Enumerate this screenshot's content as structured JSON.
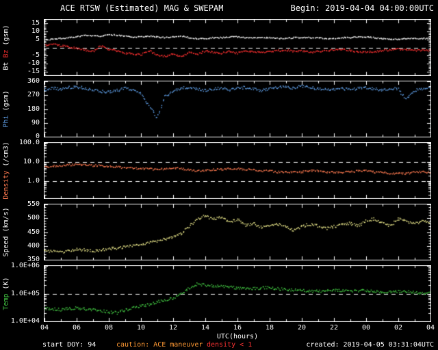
{
  "header": {
    "begin": "Begin: 2019-04-04 04:00:00UTC"
  },
  "footer": {
    "start_doy": "start DOY: 94",
    "caution": "caution: ACE maneuver",
    "density_warning": "density < 1",
    "created": "created: 2019-04-05 03:31:04UTC"
  },
  "colors": {
    "background": "#000000",
    "frame": "#ffffff",
    "bt": "#ffffff",
    "bz": "#ff3030",
    "phi": "#5f9ee6",
    "density": "#ff7a50",
    "speed": "#eeeb8d",
    "temp": "#44cc44",
    "caution_text": "#ff9933",
    "warning_text": "#ff3333"
  },
  "chart_data": {
    "type": "scatter",
    "title": "ACE RTSW (Estimated) MAG & SWEPAM",
    "x": {
      "label": "UTC(hours)",
      "range": [
        4,
        28
      ],
      "tick_hours": [
        4,
        6,
        8,
        10,
        12,
        14,
        16,
        18,
        20,
        22,
        24,
        26,
        28
      ],
      "tick_labels": [
        "04",
        "06",
        "08",
        "10",
        "12",
        "14",
        "16",
        "18",
        "20",
        "22",
        "00",
        "02",
        "04"
      ]
    },
    "x_hours": [
      4,
      4.5,
      5,
      5.5,
      6,
      6.5,
      7,
      7.5,
      8,
      8.5,
      9,
      9.5,
      10,
      10.5,
      11,
      11.5,
      12,
      12.5,
      13,
      13.5,
      14,
      14.5,
      15,
      15.5,
      16,
      16.5,
      17,
      17.5,
      18,
      18.5,
      19,
      19.5,
      20,
      20.5,
      21,
      21.5,
      22,
      22.5,
      23,
      23.5,
      24,
      24.5,
      25,
      25.5,
      26,
      26.5,
      27,
      27.5,
      28
    ],
    "panels": [
      {
        "id": "mag",
        "ylabel_parts": [
          {
            "text": "Bt",
            "color": "#ffffff"
          },
          {
            "text": " ",
            "color": "#ffffff"
          },
          {
            "text": "Bz",
            "color": "#ff3030"
          },
          {
            "text": " (gsm)",
            "color": "#ffffff"
          }
        ],
        "scale": "linear",
        "ylim": [
          -17,
          17
        ],
        "yticks": [
          {
            "v": 15,
            "label": "15"
          },
          {
            "v": 10,
            "label": "10"
          },
          {
            "v": 5,
            "label": "5"
          },
          {
            "v": -5,
            "label": "-5"
          },
          {
            "v": -10,
            "label": "-10"
          },
          {
            "v": -15,
            "label": "-15"
          }
        ],
        "dashed": [
          0
        ],
        "series": [
          {
            "name": "Bt",
            "color": "#ffffff",
            "values": [
              4.5,
              5,
              5.5,
              6,
              6.5,
              7.5,
              7,
              7,
              8,
              7.5,
              7,
              6.5,
              6.5,
              7,
              6.5,
              6,
              6.5,
              7,
              6,
              5.5,
              5.5,
              6,
              6,
              6.5,
              6.5,
              6,
              6,
              6,
              6,
              5.5,
              5.5,
              6,
              6,
              6,
              6,
              5.5,
              5.5,
              6,
              6,
              6.5,
              6.5,
              6,
              5.5,
              5,
              5,
              5.5,
              5.5,
              5.5,
              5.5
            ]
          },
          {
            "name": "Bz",
            "color": "#ff3030",
            "values": [
              1.5,
              2,
              1,
              0.5,
              -0.5,
              -1.5,
              -2.5,
              1,
              -1,
              -2,
              -3.5,
              -4,
              -4.5,
              -2,
              -4.5,
              -5.5,
              -4,
              -6,
              -3,
              -4.5,
              -2,
              -3,
              -3.5,
              -2.5,
              -3.5,
              -2,
              -2.5,
              -3,
              -2.5,
              -2,
              -1.5,
              -2.5,
              -2,
              -3,
              -2.5,
              -2,
              -1.5,
              -1,
              -2,
              -2.5,
              -3,
              -2.5,
              -2,
              -1.5,
              -1,
              -1.5,
              -2,
              -1.5,
              -2
            ]
          }
        ]
      },
      {
        "id": "phi",
        "ylabel_parts": [
          {
            "text": "Phi",
            "color": "#5f9ee6"
          },
          {
            "text": " (gsm)",
            "color": "#ffffff"
          }
        ],
        "scale": "linear",
        "ylim": [
          0,
          360
        ],
        "yticks": [
          {
            "v": 360,
            "label": "360"
          },
          {
            "v": 270,
            "label": "270"
          },
          {
            "v": 180,
            "label": "180"
          },
          {
            "v": 90,
            "label": "90"
          },
          {
            "v": 0,
            "label": "0"
          }
        ],
        "dashed": [],
        "series": [
          {
            "name": "Phi",
            "color": "#5f9ee6",
            "values": [
              305,
              315,
              310,
              320,
              325,
              315,
              305,
              295,
              290,
              300,
              315,
              305,
              285,
              200,
              120,
              260,
              300,
              315,
              320,
              310,
              300,
              310,
              315,
              305,
              315,
              320,
              310,
              300,
              310,
              320,
              325,
              315,
              330,
              320,
              310,
              305,
              310,
              315,
              305,
              315,
              320,
              310,
              305,
              315,
              310,
              240,
              300,
              310,
              315
            ]
          }
        ]
      },
      {
        "id": "density",
        "ylabel_parts": [
          {
            "text": "Density",
            "color": "#ff7a50"
          },
          {
            "text": " (/cm3)",
            "color": "#ffffff"
          }
        ],
        "scale": "log",
        "ylim": [
          0.13,
          100
        ],
        "yticks": [
          {
            "v": 100,
            "label": "100.0"
          },
          {
            "v": 10,
            "label": "10.0"
          },
          {
            "v": 1,
            "label": "1.0"
          }
        ],
        "dashed": [
          10,
          1
        ],
        "series": [
          {
            "name": "Density",
            "color": "#ff7a50",
            "values": [
              5.5,
              6,
              6.5,
              7,
              7.5,
              7,
              6.5,
              6.5,
              6,
              5.5,
              5,
              5,
              4.5,
              4.5,
              4,
              4.5,
              5,
              4.5,
              4,
              3.5,
              3.5,
              4,
              4,
              4.5,
              4.5,
              4,
              4,
              3.5,
              3.5,
              3,
              3,
              3,
              3,
              3.5,
              3.5,
              3,
              3,
              3,
              3,
              3.5,
              3.5,
              3,
              3,
              2.5,
              2.5,
              2.5,
              3,
              3,
              3
            ]
          }
        ]
      },
      {
        "id": "speed",
        "ylabel_parts": [
          {
            "text": "Speed",
            "color": "#ffffff"
          },
          {
            "text": " (km/s)",
            "color": "#ffffff"
          }
        ],
        "scale": "linear",
        "ylim": [
          350,
          550
        ],
        "yticks": [
          {
            "v": 550,
            "label": "550"
          },
          {
            "v": 500,
            "label": "500"
          },
          {
            "v": 450,
            "label": "450"
          },
          {
            "v": 400,
            "label": "400"
          },
          {
            "v": 350,
            "label": "350"
          }
        ],
        "dashed": [],
        "series": [
          {
            "name": "Speed",
            "color": "#eeeb8d",
            "values": [
              385,
              380,
              378,
              382,
              388,
              385,
              382,
              385,
              390,
              392,
              395,
              400,
              405,
              412,
              418,
              425,
              430,
              445,
              470,
              495,
              510,
              495,
              505,
              485,
              495,
              475,
              482,
              465,
              472,
              478,
              468,
              458,
              470,
              478,
              472,
              462,
              470,
              478,
              482,
              472,
              490,
              498,
              482,
              472,
              498,
              490,
              480,
              488,
              485
            ]
          }
        ]
      },
      {
        "id": "temp",
        "ylabel_parts": [
          {
            "text": "Temp",
            "color": "#44cc44"
          },
          {
            "text": " (K)",
            "color": "#ffffff"
          }
        ],
        "scale": "log",
        "ylim": [
          10000,
          1000000
        ],
        "yticks": [
          {
            "v": 1000000,
            "label": "1.0E+06"
          },
          {
            "v": 100000,
            "label": "1.0E+05"
          },
          {
            "v": 10000,
            "label": "1.0E+04"
          }
        ],
        "dashed": [
          100000
        ],
        "series": [
          {
            "name": "Temp",
            "color": "#44cc44",
            "values": [
              30000,
              28000,
              26000,
              28000,
              30000,
              28000,
              26000,
              24000,
              22000,
              20000,
              25000,
              30000,
              35000,
              40000,
              50000,
              60000,
              70000,
              100000,
              160000,
              220000,
              200000,
              190000,
              180000,
              170000,
              160000,
              150000,
              150000,
              160000,
              160000,
              150000,
              140000,
              135000,
              130000,
              125000,
              120000,
              125000,
              130000,
              125000,
              120000,
              125000,
              130000,
              120000,
              110000,
              115000,
              120000,
              115000,
              110000,
              105000,
              100000
            ]
          }
        ]
      }
    ]
  }
}
